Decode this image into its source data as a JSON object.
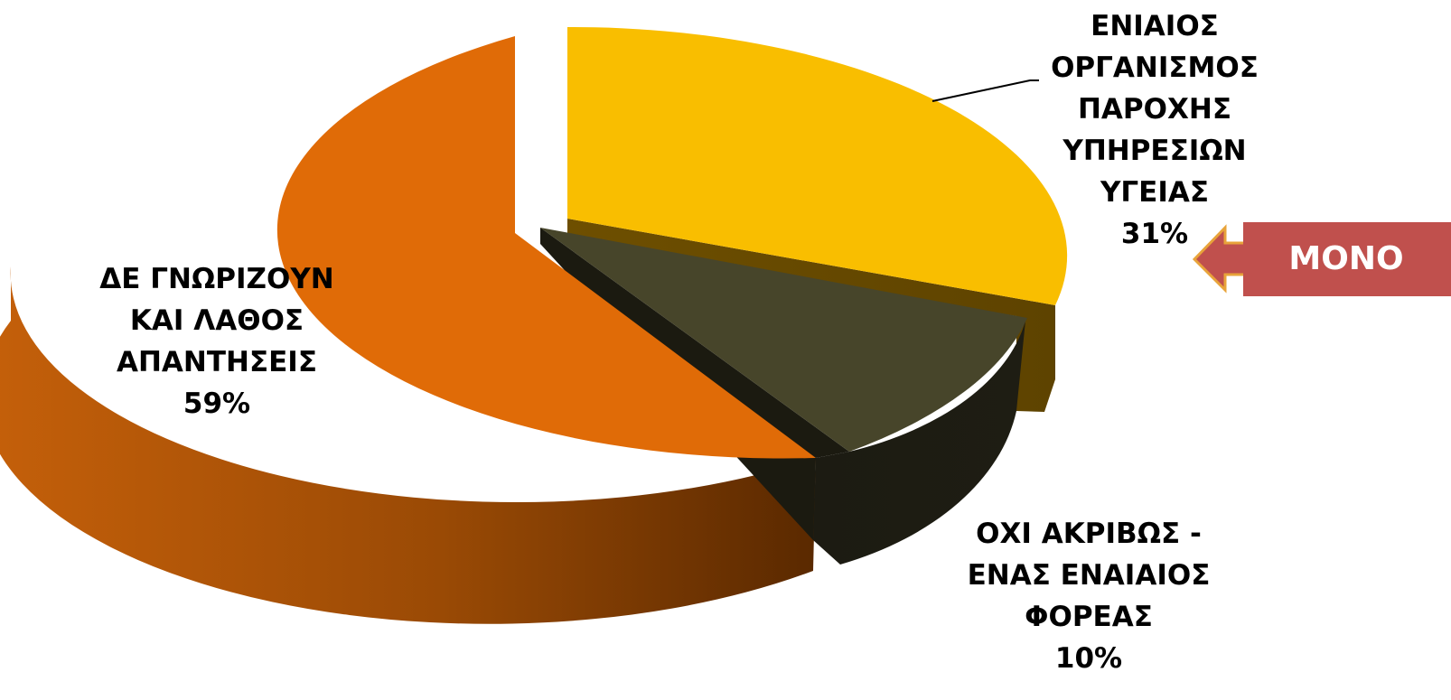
{
  "chart_data": {
    "type": "pie",
    "style": "3d-exploded",
    "slices": [
      {
        "label": "ΕΝΙΑΙΟΣ ΟΡΓΑΝΙΣΜΟΣ ΠΑΡΟΧΗΣ ΥΠΗΡΕΣΙΩΝ ΥΓΕΙΑΣ",
        "value": 31,
        "percent_text": "31%",
        "color": "#F9BE00"
      },
      {
        "label": "ΟΧΙ ΑΚΡΙΒΩΣ - ΕΝΑΣ ΕΝΑΙΑΙΟΣ ΦΟΡΕΑΣ",
        "value": 10,
        "percent_text": "10%",
        "color": "#47452A"
      },
      {
        "label": "ΔΕ ΓΝΩΡΙΖΟΥΝ ΚΑΙ ΛΑΘΟΣ ΑΠΑΝΤΗΣΕΙΣ",
        "value": 59,
        "percent_text": "59%",
        "color": "#E06B07"
      }
    ],
    "annotation": {
      "text": "ΜΟΝΟ",
      "points_to": "ΕΝΙΑΙΟΣ ΟΡΓΑΝΙΣΜΟΣ ΠΑΡΟΧΗΣ ΥΠΗΡΕΣΙΩΝ ΥΓΕΙΑΣ",
      "color": "#C0504D"
    }
  },
  "labels": {
    "unified": {
      "lines": [
        "ΕΝΙΑΙΟΣ",
        "ΟΡΓΑΝΙΣΜΟΣ",
        "ΠΑΡΟΧΗΣ",
        "ΥΠΗΡΕΣΙΩΝ",
        "ΥΓΕΙΑΣ"
      ],
      "pct": "31%"
    },
    "dontknow": {
      "lines": [
        "ΔΕ ΓΝΩΡΙΖΟΥΝ",
        "ΚΑΙ ΛΑΘΟΣ",
        "ΑΠΑΝΤΗΣΕΙΣ"
      ],
      "pct": "59%"
    },
    "notexactly": {
      "lines": [
        "ΟΧΙ ΑΚΡΙΒΩΣ -",
        "ΕΝΑΣ ΕΝΑΙΑΙΟΣ",
        "ΦΟΡΕΑΣ"
      ],
      "pct": "10%"
    }
  },
  "callout": {
    "text": "ΜΟΝΟ"
  }
}
